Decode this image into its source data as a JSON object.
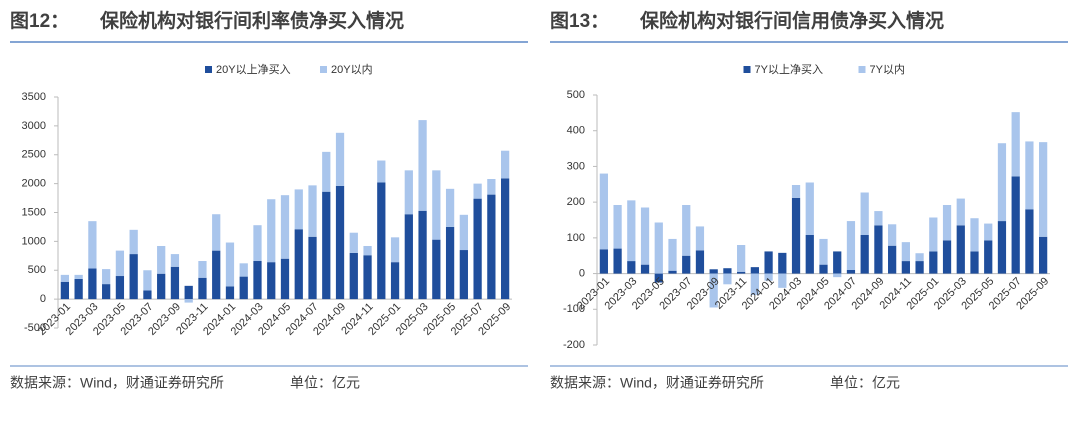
{
  "chart_data": [
    {
      "type": "bar",
      "stacked": true,
      "figure": "图12：",
      "title": "保险机构对银行间利率债净买入情况",
      "source": "数据来源：Wind，财通证券研究所",
      "unit": "单位：亿元",
      "categories": [
        "2023-01",
        null,
        "2023-03",
        null,
        "2023-05",
        null,
        "2023-07",
        null,
        "2023-09",
        null,
        "2023-11",
        null,
        "2024-01",
        null,
        "2024-03",
        null,
        "2024-05",
        null,
        "2024-07",
        null,
        "2024-09",
        null,
        "2024-11",
        null,
        "2025-01",
        null,
        "2025-03",
        null,
        "2025-05",
        null,
        "2025-07",
        null,
        "2025-09"
      ],
      "series": [
        {
          "name": "20Y以上净买入",
          "color": "#1f4e9c",
          "values": [
            300,
            350,
            530,
            260,
            400,
            780,
            150,
            440,
            560,
            230,
            370,
            840,
            220,
            390,
            660,
            640,
            700,
            1210,
            1080,
            1860,
            1960,
            800,
            760,
            2020,
            640,
            1470,
            1530,
            1030,
            1250,
            850,
            1740,
            1810,
            2090
          ]
        },
        {
          "name": "20Y以内",
          "color": "#a9c5ec",
          "values": [
            120,
            70,
            820,
            260,
            440,
            420,
            350,
            480,
            220,
            -60,
            290,
            630,
            760,
            230,
            620,
            1090,
            1100,
            690,
            890,
            690,
            920,
            350,
            160,
            380,
            430,
            760,
            1570,
            1200,
            660,
            610,
            260,
            270,
            480
          ]
        }
      ],
      "ylim": [
        -500,
        3500
      ],
      "yticks": [
        -500,
        0,
        500,
        1000,
        1500,
        2000,
        2500,
        3000,
        3500
      ],
      "grid": false,
      "legend": "top"
    },
    {
      "type": "bar",
      "stacked": true,
      "figure": "图13：",
      "title": "保险机构对银行间信用债净买入情况",
      "source": "数据来源：Wind，财通证券研究所",
      "unit": "单位：亿元",
      "categories": [
        "2023-01",
        null,
        "2023-03",
        null,
        "2023-05",
        null,
        "2023-07",
        null,
        "2023-09",
        null,
        "2023-11",
        null,
        "2024-01",
        null,
        "2024-03",
        null,
        "2024-05",
        null,
        "2024-07",
        null,
        "2024-09",
        null,
        "2024-11",
        null,
        "2025-01",
        null,
        "2025-03",
        null,
        "2025-05",
        null,
        "2025-07",
        null,
        "2025-09"
      ],
      "series": [
        {
          "name": "7Y以上净买入",
          "color": "#1f4e9c",
          "values": [
            68,
            70,
            35,
            25,
            -25,
            8,
            50,
            65,
            12,
            15,
            5,
            18,
            62,
            58,
            212,
            108,
            25,
            62,
            10,
            108,
            135,
            78,
            35,
            35,
            62,
            93,
            135,
            62,
            93,
            147,
            272,
            180,
            103
          ]
        },
        {
          "name": "7Y以内",
          "color": "#a9c5ec",
          "values": [
            212,
            122,
            170,
            160,
            143,
            89,
            142,
            67,
            -95,
            -30,
            75,
            -60,
            -20,
            -40,
            36,
            147,
            72,
            -10,
            137,
            119,
            40,
            60,
            53,
            22,
            95,
            99,
            75,
            93,
            47,
            218,
            180,
            190,
            265
          ]
        }
      ],
      "ylim": [
        -200,
        500
      ],
      "yticks": [
        -200,
        -100,
        0,
        100,
        200,
        300,
        400,
        500
      ],
      "grid": false,
      "legend": "top"
    }
  ]
}
